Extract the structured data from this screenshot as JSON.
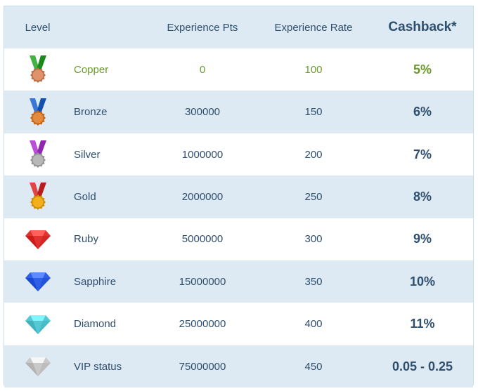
{
  "header": {
    "level": "Level",
    "experience_pts": "Experience Pts",
    "experience_rate": "Experience Rate",
    "cashback": "Cashback*"
  },
  "rows": [
    {
      "name": "Copper",
      "pts": "0",
      "rate": "100",
      "cashback": "5%",
      "icon": "copper-medal-icon",
      "ribbon": "#43b243",
      "medal": "#e0936a"
    },
    {
      "name": "Bronze",
      "pts": "300000",
      "rate": "150",
      "cashback": "6%",
      "icon": "bronze-medal-icon",
      "ribbon": "#3a78d8",
      "medal": "#e58a3c"
    },
    {
      "name": "Silver",
      "pts": "1000000",
      "rate": "200",
      "cashback": "7%",
      "icon": "silver-medal-icon",
      "ribbon": "#b84fd6",
      "medal": "#b8b8b8"
    },
    {
      "name": "Gold",
      "pts": "2000000",
      "rate": "250",
      "cashback": "8%",
      "icon": "gold-medal-icon",
      "ribbon": "#e04444",
      "medal": "#f2b01e"
    },
    {
      "name": "Ruby",
      "pts": "5000000",
      "rate": "300",
      "cashback": "9%",
      "icon": "ruby-gem-icon",
      "gem": "#e0332f"
    },
    {
      "name": "Sapphire",
      "pts": "15000000",
      "rate": "350",
      "cashback": "10%",
      "icon": "sapphire-gem-icon",
      "gem": "#2f5fe6"
    },
    {
      "name": "Diamond",
      "pts": "25000000",
      "rate": "400",
      "cashback": "11%",
      "icon": "diamond-gem-icon",
      "gem": "#55c8d3"
    },
    {
      "name": "VIP status",
      "pts": "75000000",
      "rate": "450",
      "cashback": "0.05 - 0.25",
      "icon": "vip-gem-icon",
      "gem": "#c9c9c9"
    }
  ],
  "colors": {
    "accent_green": "#6a9b2a",
    "text": "#2f4f6e",
    "stripe": "#dde9f3"
  }
}
